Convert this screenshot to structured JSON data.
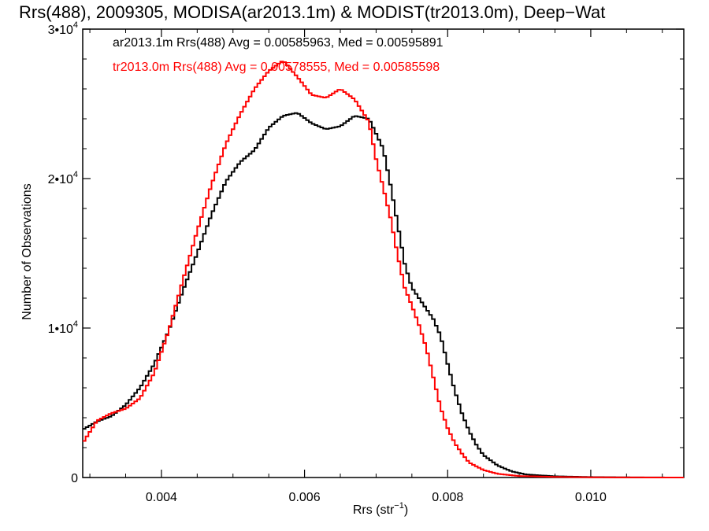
{
  "chart_data": {
    "type": "line",
    "title": "Rrs(488), 2009305, MODISA(ar2013.1m) & MODIST(tr2013.0m), Deep−Wat",
    "xlabel": "Rrs (str",
    "xlabel_sup": "−1",
    "xlabel_end": ")",
    "ylabel": "Number of Observations",
    "xlim": [
      0.0029,
      0.0113
    ],
    "ylim": [
      0,
      30000
    ],
    "x_ticks": [
      {
        "value": 0.004,
        "label": "0.004"
      },
      {
        "value": 0.006,
        "label": "0.006"
      },
      {
        "value": 0.008,
        "label": "0.008"
      },
      {
        "value": 0.01,
        "label": "0.010"
      }
    ],
    "y_ticks": [
      {
        "value": 0,
        "label": "0",
        "exp": ""
      },
      {
        "value": 10000,
        "label": "1•10",
        "exp": "4"
      },
      {
        "value": 20000,
        "label": "2•10",
        "exp": "4"
      },
      {
        "value": 30000,
        "label": "3•10",
        "exp": "4"
      }
    ],
    "grid": false,
    "legend_position": "top-left",
    "series": [
      {
        "name": "ar2013.1m",
        "color": "#000000",
        "legend_text": "ar2013.1m Rrs(488) Avg = 0.00585963, Med = 0.00595891",
        "points": [
          [
            0.0029,
            3200
          ],
          [
            0.0031,
            3750
          ],
          [
            0.0033,
            4100
          ],
          [
            0.0035,
            4850
          ],
          [
            0.0037,
            6000
          ],
          [
            0.0039,
            7600
          ],
          [
            0.0041,
            9800
          ],
          [
            0.0043,
            12500
          ],
          [
            0.0045,
            15000
          ],
          [
            0.0047,
            17600
          ],
          [
            0.0049,
            19800
          ],
          [
            0.0051,
            21100
          ],
          [
            0.0053,
            21900
          ],
          [
            0.0055,
            23400
          ],
          [
            0.0057,
            24200
          ],
          [
            0.0059,
            24400
          ],
          [
            0.0061,
            23700
          ],
          [
            0.0063,
            23300
          ],
          [
            0.0065,
            23500
          ],
          [
            0.0067,
            24200
          ],
          [
            0.0069,
            24000
          ],
          [
            0.0071,
            22000
          ],
          [
            0.0072,
            19600
          ],
          [
            0.0073,
            17000
          ],
          [
            0.0074,
            14300
          ],
          [
            0.0075,
            12700
          ],
          [
            0.0077,
            11300
          ],
          [
            0.0078,
            10600
          ],
          [
            0.0079,
            9500
          ],
          [
            0.008,
            7600
          ],
          [
            0.0081,
            5800
          ],
          [
            0.0082,
            4300
          ],
          [
            0.0083,
            3100
          ],
          [
            0.0084,
            2200
          ],
          [
            0.0085,
            1500
          ],
          [
            0.0087,
            800
          ],
          [
            0.0089,
            400
          ],
          [
            0.0091,
            200
          ],
          [
            0.0095,
            80
          ],
          [
            0.01,
            30
          ],
          [
            0.0105,
            10
          ],
          [
            0.0113,
            0
          ]
        ]
      },
      {
        "name": "tr2013.0m",
        "color": "#ff0000",
        "legend_text": "tr2013.0m Rrs(488) Avg = 0.00578555, Med = 0.00585598",
        "points": [
          [
            0.0029,
            2300
          ],
          [
            0.0031,
            3800
          ],
          [
            0.0033,
            4300
          ],
          [
            0.0035,
            4600
          ],
          [
            0.0037,
            5300
          ],
          [
            0.0039,
            7000
          ],
          [
            0.0041,
            9800
          ],
          [
            0.0043,
            13200
          ],
          [
            0.0045,
            16500
          ],
          [
            0.0047,
            19600
          ],
          [
            0.0049,
            22300
          ],
          [
            0.0051,
            24300
          ],
          [
            0.0053,
            26000
          ],
          [
            0.0055,
            27200
          ],
          [
            0.0057,
            27900
          ],
          [
            0.0059,
            26800
          ],
          [
            0.0061,
            25600
          ],
          [
            0.0063,
            25400
          ],
          [
            0.0065,
            26000
          ],
          [
            0.0067,
            25300
          ],
          [
            0.0069,
            23800
          ],
          [
            0.007,
            21300
          ],
          [
            0.0071,
            19400
          ],
          [
            0.0072,
            17400
          ],
          [
            0.0073,
            14900
          ],
          [
            0.0074,
            12700
          ],
          [
            0.0075,
            11500
          ],
          [
            0.0076,
            10200
          ],
          [
            0.0077,
            8700
          ],
          [
            0.0078,
            6700
          ],
          [
            0.0079,
            4700
          ],
          [
            0.008,
            3300
          ],
          [
            0.0081,
            2300
          ],
          [
            0.0082,
            1600
          ],
          [
            0.0083,
            1000
          ],
          [
            0.0085,
            500
          ],
          [
            0.0087,
            250
          ],
          [
            0.009,
            100
          ],
          [
            0.0095,
            40
          ],
          [
            0.01,
            15
          ],
          [
            0.0105,
            5
          ],
          [
            0.0113,
            0
          ]
        ]
      }
    ]
  }
}
